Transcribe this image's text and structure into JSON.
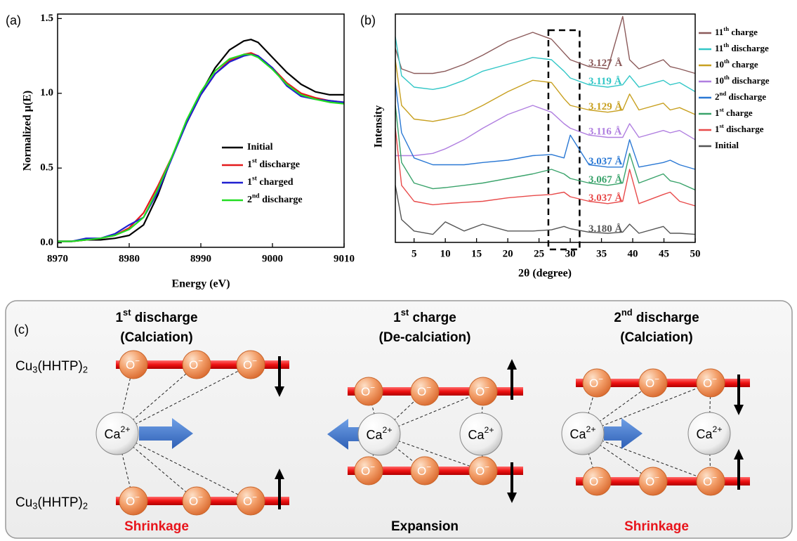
{
  "chart_data": [
    {
      "type": "line",
      "panel_label": "(a)",
      "x_label": "Energy (eV)",
      "y_label": "Normalized μ(E)",
      "x": [
        8970,
        8972,
        8974,
        8976,
        8978,
        8980,
        8982,
        8984,
        8986,
        8988,
        8990,
        8992,
        8994,
        8996,
        8997,
        8998,
        9000,
        9002,
        9004,
        9006,
        9008,
        9010
      ],
      "xlim": [
        8970,
        9010
      ],
      "xticks": [
        8970,
        8980,
        8990,
        9000,
        9010
      ],
      "ylim": [
        -0.03,
        1.53
      ],
      "yticks": [
        {
          "value": 0,
          "label": "0.0"
        },
        0.5,
        {
          "value": 1,
          "label": "1.0"
        },
        {
          "value": 1.5,
          "label": "1.5"
        }
      ],
      "legend": "lower right",
      "series": [
        {
          "name": "Initial",
          "color": "#000000",
          "values": [
            0.01,
            0.01,
            0.02,
            0.02,
            0.03,
            0.05,
            0.12,
            0.32,
            0.58,
            0.8,
            1.0,
            1.17,
            1.29,
            1.35,
            1.36,
            1.34,
            1.24,
            1.14,
            1.06,
            1.01,
            0.99,
            0.99
          ]
        },
        {
          "name": "1st discharge",
          "color": "#e41a1c",
          "values": [
            0.01,
            0.01,
            0.02,
            0.03,
            0.05,
            0.1,
            0.2,
            0.38,
            0.58,
            0.8,
            0.99,
            1.13,
            1.22,
            1.26,
            1.27,
            1.25,
            1.17,
            1.07,
            1.0,
            0.97,
            0.95,
            0.94
          ]
        },
        {
          "name": "1st charged",
          "color": "#1f1fd0",
          "values": [
            0.01,
            0.01,
            0.03,
            0.03,
            0.06,
            0.12,
            0.17,
            0.34,
            0.57,
            0.8,
            0.99,
            1.13,
            1.21,
            1.25,
            1.26,
            1.25,
            1.17,
            1.05,
            0.98,
            0.96,
            0.95,
            0.94
          ]
        },
        {
          "name": "2nd discharge",
          "color": "#22dd22",
          "values": [
            0.01,
            0.01,
            0.02,
            0.03,
            0.05,
            0.09,
            0.17,
            0.36,
            0.58,
            0.82,
            1.01,
            1.15,
            1.23,
            1.26,
            1.26,
            1.24,
            1.16,
            1.06,
            0.99,
            0.96,
            0.94,
            0.93
          ]
        }
      ]
    },
    {
      "type": "line",
      "panel_label": "(b)",
      "x_label": "2θ (degree)",
      "y_label": "Intensity",
      "x": [
        2,
        3,
        5,
        8,
        10,
        13,
        16,
        20,
        24,
        27,
        29,
        30,
        33,
        36,
        38.4,
        39.5,
        41,
        44.9,
        46,
        47.5,
        50
      ],
      "xlim": [
        2,
        50
      ],
      "xticks": [
        5,
        10,
        15,
        20,
        25,
        30,
        35,
        40,
        45,
        50
      ],
      "ylim": [
        0,
        10
      ],
      "legend": "outside right",
      "highlight_xrange": [
        26.5,
        31.5
      ],
      "series": [
        {
          "name": "11th charge",
          "color": "#8b5a5a",
          "d_label": "3.127 Å",
          "values": [
            8.5,
            7.6,
            7.4,
            7.4,
            7.5,
            7.8,
            8.2,
            8.8,
            9.2,
            8.9,
            8.3,
            8.0,
            7.7,
            7.6,
            9.9,
            8.0,
            7.6,
            8.0,
            7.7,
            7.6,
            7.4
          ]
        },
        {
          "name": "11th discharge",
          "color": "#33c7c7",
          "d_label": "3.119 Å",
          "values": [
            9.0,
            7.3,
            6.8,
            6.7,
            6.8,
            7.1,
            7.5,
            7.8,
            8.1,
            8.0,
            7.5,
            7.2,
            6.9,
            6.8,
            6.9,
            7.3,
            6.8,
            7.1,
            6.9,
            7.0,
            6.6
          ]
        },
        {
          "name": "10th charge",
          "color": "#c8a020",
          "d_label": "3.129 Å",
          "values": [
            8.0,
            6.0,
            5.4,
            5.3,
            5.4,
            5.6,
            6.0,
            6.6,
            7.1,
            7.0,
            6.3,
            6.0,
            5.8,
            5.7,
            5.8,
            6.5,
            5.8,
            6.1,
            5.8,
            5.9,
            5.6
          ]
        },
        {
          "name": "10th discharge",
          "color": "#b07fe0",
          "d_label": "3.116 Å",
          "values": [
            3.8,
            3.8,
            3.8,
            3.9,
            4.1,
            4.5,
            5.0,
            5.6,
            6.0,
            5.7,
            5.2,
            5.0,
            4.7,
            4.6,
            4.6,
            5.2,
            4.6,
            4.9,
            4.8,
            4.9,
            4.5
          ]
        },
        {
          "name": "2nd discharge",
          "color": "#2a78d4",
          "d_label": "3.037 Å",
          "values": [
            7.0,
            4.8,
            3.7,
            3.4,
            3.4,
            3.4,
            3.5,
            3.6,
            3.8,
            3.85,
            3.7,
            4.7,
            3.4,
            3.3,
            3.3,
            4.5,
            3.3,
            3.5,
            3.6,
            3.4,
            3.2
          ]
        },
        {
          "name": "1st charge",
          "color": "#3aa36b",
          "d_label": "3.067 Å",
          "values": [
            6.0,
            3.5,
            2.6,
            2.35,
            2.4,
            2.5,
            2.6,
            2.8,
            3.0,
            3.2,
            3.0,
            2.8,
            2.6,
            2.5,
            2.6,
            3.9,
            2.6,
            3.0,
            2.7,
            2.6,
            2.3
          ]
        },
        {
          "name": "1st discharge",
          "color": "#e84a4a",
          "d_label": "3.037 Å",
          "values": [
            5.0,
            2.5,
            1.8,
            1.65,
            1.7,
            1.75,
            1.8,
            1.95,
            2.05,
            2.1,
            2.2,
            2.0,
            1.8,
            1.7,
            1.8,
            3.2,
            1.7,
            2.1,
            2.2,
            1.8,
            1.6
          ]
        },
        {
          "name": "Initial",
          "color": "#555555",
          "d_label": "3.180 Å",
          "values": [
            2.5,
            1.0,
            0.5,
            0.35,
            0.9,
            0.5,
            0.8,
            0.5,
            0.5,
            0.55,
            0.7,
            0.6,
            0.45,
            0.4,
            0.45,
            0.8,
            0.4,
            0.7,
            0.4,
            0.4,
            0.35
          ]
        }
      ]
    }
  ],
  "diagram": {
    "panel_label": "(c)",
    "layer_labels": [
      "Cu3(HHTP)2",
      "Cu3(HHTP)2"
    ],
    "oxygen_label": "O−",
    "calcium_label": "Ca2+",
    "stages": [
      {
        "title": "1st discharge",
        "subtitle": "(Calciation)",
        "result": "Shrinkage"
      },
      {
        "title": "1st charge",
        "subtitle": "(De-calciation)",
        "result": "Expansion"
      },
      {
        "title": "2nd discharge",
        "subtitle": "(Calciation)",
        "result": "Shrinkage"
      }
    ]
  }
}
